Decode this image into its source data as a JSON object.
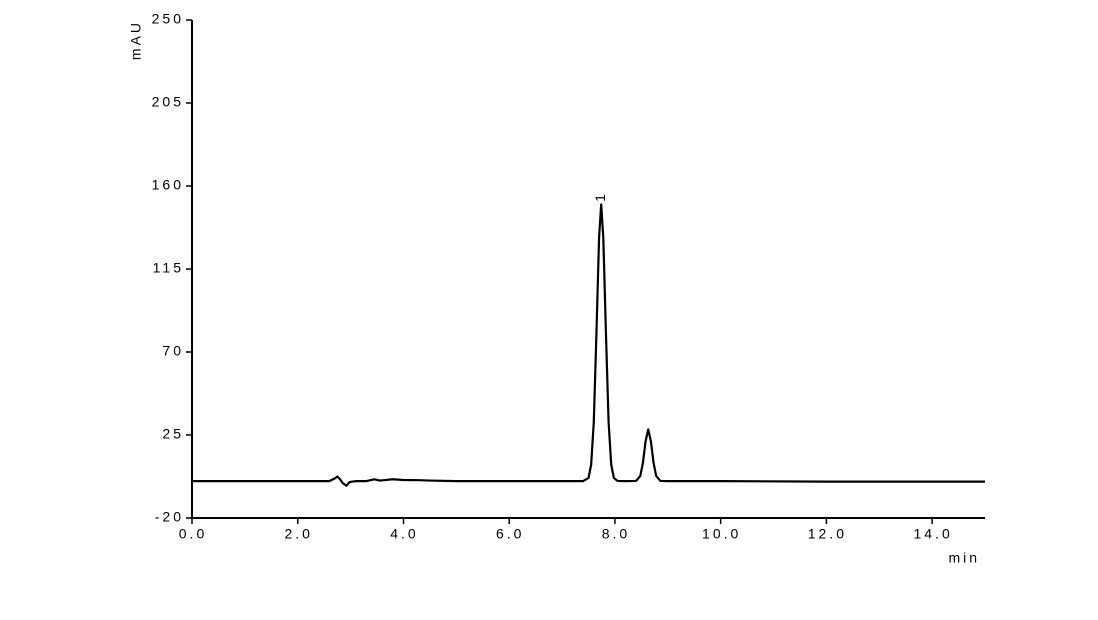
{
  "chart_data": {
    "type": "line",
    "y_label": "mAU",
    "x_label": "min",
    "xlim": [
      0,
      15
    ],
    "ylim": [
      -20,
      250
    ],
    "xticks": [
      {
        "value": 0,
        "label": "0.0"
      },
      {
        "value": 2,
        "label": "2.0"
      },
      {
        "value": 4,
        "label": "4.0"
      },
      {
        "value": 6,
        "label": "6.0"
      },
      {
        "value": 8,
        "label": "8.0"
      },
      {
        "value": 10,
        "label": "10.0"
      },
      {
        "value": 12,
        "label": "12.0"
      },
      {
        "value": 14,
        "label": "14.0"
      }
    ],
    "yticks": [
      -20,
      25,
      70,
      115,
      160,
      205,
      250
    ],
    "annotations": [
      {
        "text": "1"
      }
    ],
    "series": [
      {
        "color": "#000000",
        "x": [
          0,
          2.6,
          2.7,
          2.75,
          2.8,
          2.85,
          2.92,
          2.98,
          3.1,
          3.3,
          3.45,
          3.55,
          3.8,
          4.0,
          4.3,
          4.5,
          5,
          6,
          7,
          7.4,
          7.5,
          7.55,
          7.6,
          7.65,
          7.7,
          7.74,
          7.78,
          7.83,
          7.88,
          7.93,
          7.98,
          8.05,
          8.2,
          8.4,
          8.48,
          8.53,
          8.58,
          8.63,
          8.68,
          8.73,
          8.78,
          8.86,
          9.0,
          10,
          12,
          15
        ],
        "values": [
          0,
          0,
          1.5,
          2.5,
          1,
          -1,
          -2.5,
          -0.5,
          0,
          0,
          1,
          0.3,
          1,
          0.6,
          0.5,
          0.3,
          0,
          0,
          0,
          0,
          1.7,
          8.9,
          32,
          80,
          132,
          150,
          132,
          80,
          32,
          8.9,
          1.7,
          0.1,
          0,
          0.1,
          2.8,
          10,
          21.7,
          28,
          21.7,
          10,
          2.8,
          0.1,
          0,
          0,
          -0.3,
          -0.3
        ]
      }
    ]
  }
}
